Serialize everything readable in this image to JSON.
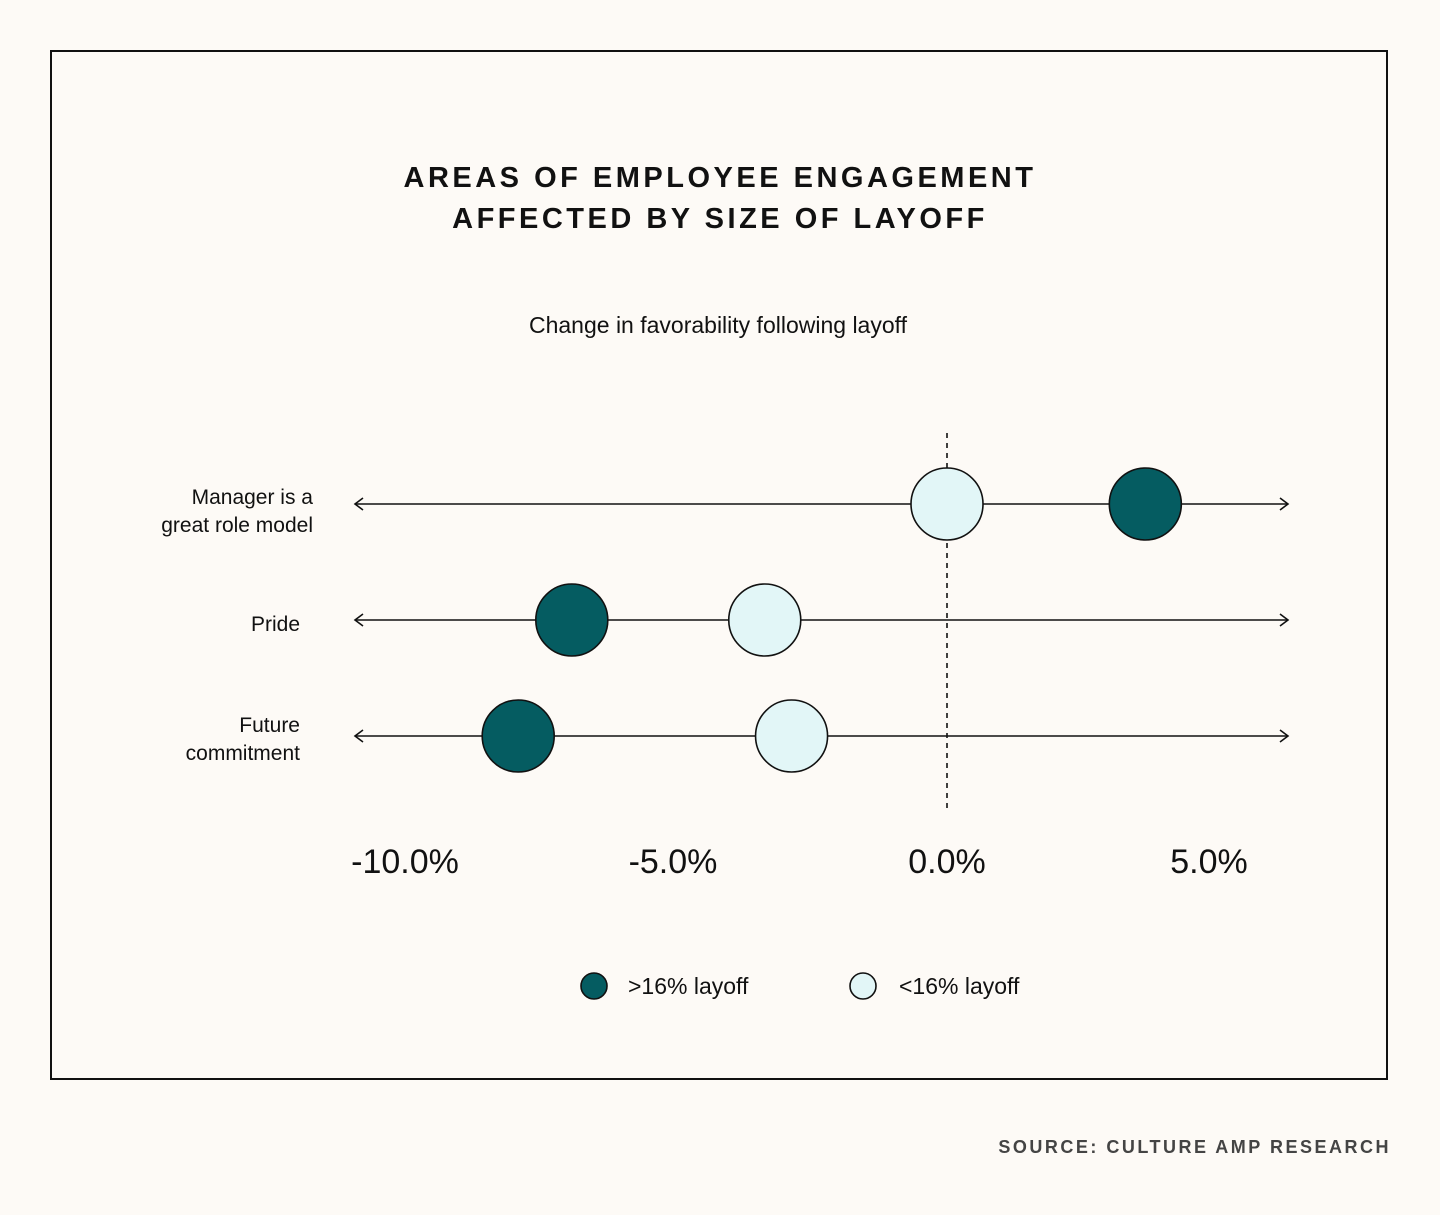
{
  "title_lines": [
    "AREAS OF EMPLOYEE ENGAGEMENT",
    "AFFECTED BY SIZE OF LAYOFF"
  ],
  "subtitle": "Change in favorability following layoff",
  "source": "SOURCE: CULTURE AMP RESEARCH",
  "colors": {
    "dark": "#055c61",
    "light": "#e2f6f7",
    "stroke": "#111111"
  },
  "chart_data": {
    "type": "scatter",
    "title": "AREAS OF EMPLOYEE ENGAGEMENT AFFECTED BY SIZE OF LAYOFF",
    "xlabel": "Change in favorability following layoff",
    "xlim": [
      -11.5,
      6.3
    ],
    "xticks": [
      -10.0,
      -5.0,
      0.0,
      5.0
    ],
    "xtick_labels": [
      "-10.0%",
      "-5.0%",
      "0.0%",
      "5.0%"
    ],
    "reference_line": 0.0,
    "categories": [
      {
        "label_lines": [
          "Manager is a",
          "great role model"
        ]
      },
      {
        "label_lines": [
          "Pride"
        ]
      },
      {
        "label_lines": [
          "Future",
          "commitment"
        ]
      }
    ],
    "series": [
      {
        "name": ">16% layoff",
        "color": "#055c61",
        "values": [
          3.7,
          -7.0,
          -8.0
        ]
      },
      {
        "name": "<16% layoff",
        "color": "#e2f6f7",
        "values": [
          0.0,
          -3.4,
          -2.9
        ]
      }
    ],
    "legend_position": "bottom-center"
  }
}
